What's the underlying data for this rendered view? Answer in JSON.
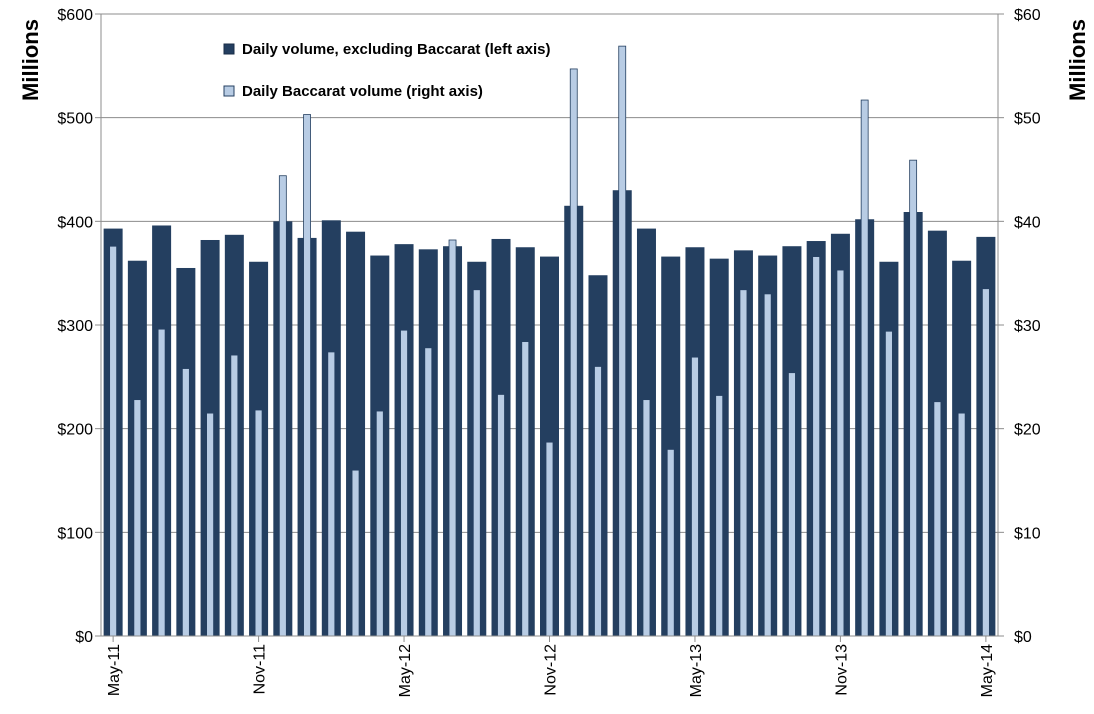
{
  "chart_data": {
    "type": "bar",
    "ylabel_left": "Millions",
    "ylabel_right": "Millions",
    "left_axis": {
      "min": 0,
      "max": 600,
      "ticks": [
        "$0",
        "$100",
        "$200",
        "$300",
        "$400",
        "$500",
        "$600"
      ]
    },
    "right_axis": {
      "min": 0,
      "max": 60,
      "ticks": [
        "$0",
        "$10",
        "$20",
        "$30",
        "$40",
        "$50",
        "$60"
      ]
    },
    "x_ticks": [
      {
        "index": 0,
        "label": "May-11"
      },
      {
        "index": 6,
        "label": "Nov-11"
      },
      {
        "index": 12,
        "label": "May-12"
      },
      {
        "index": 18,
        "label": "Nov-12"
      },
      {
        "index": 24,
        "label": "May-13"
      },
      {
        "index": 30,
        "label": "Nov-13"
      },
      {
        "index": 36,
        "label": "May-14"
      }
    ],
    "categories": [
      "May-11",
      "Jun-11",
      "Jul-11",
      "Aug-11",
      "Sep-11",
      "Oct-11",
      "Nov-11",
      "Dec-11",
      "Jan-12",
      "Feb-12",
      "Mar-12",
      "Apr-12",
      "May-12",
      "Jun-12",
      "Jul-12",
      "Aug-12",
      "Sep-12",
      "Oct-12",
      "Nov-12",
      "Dec-12",
      "Jan-13",
      "Feb-13",
      "Mar-13",
      "Apr-13",
      "May-13",
      "Jun-13",
      "Jul-13",
      "Aug-13",
      "Sep-13",
      "Oct-13",
      "Nov-13",
      "Dec-13",
      "Jan-14",
      "Feb-14",
      "Mar-14",
      "Apr-14",
      "May-14"
    ],
    "series": [
      {
        "name": "Daily volume, excluding Baccarat (left axis)",
        "axis": "left",
        "color": "#243f60",
        "values": [
          393,
          362,
          396,
          355,
          382,
          387,
          361,
          400,
          384,
          401,
          390,
          367,
          378,
          373,
          376,
          361,
          383,
          375,
          366,
          415,
          348,
          430,
          393,
          366,
          375,
          364,
          372,
          367,
          376,
          381,
          388,
          402,
          361,
          409,
          391,
          362,
          385
        ]
      },
      {
        "name": "Daily Baccarat volume (right axis)",
        "axis": "right",
        "color": "#b8cce4",
        "values": [
          37.6,
          22.8,
          29.6,
          25.8,
          21.5,
          27.1,
          21.8,
          44.4,
          50.3,
          27.4,
          16.0,
          21.7,
          29.5,
          27.8,
          38.2,
          33.4,
          23.3,
          28.4,
          18.7,
          54.7,
          26.0,
          56.9,
          22.8,
          18.0,
          26.9,
          23.2,
          33.4,
          33.0,
          25.4,
          36.6,
          35.3,
          51.7,
          29.4,
          45.9,
          22.6,
          21.5,
          33.5
        ]
      }
    ],
    "legend_position": "top-left",
    "grid": true
  }
}
